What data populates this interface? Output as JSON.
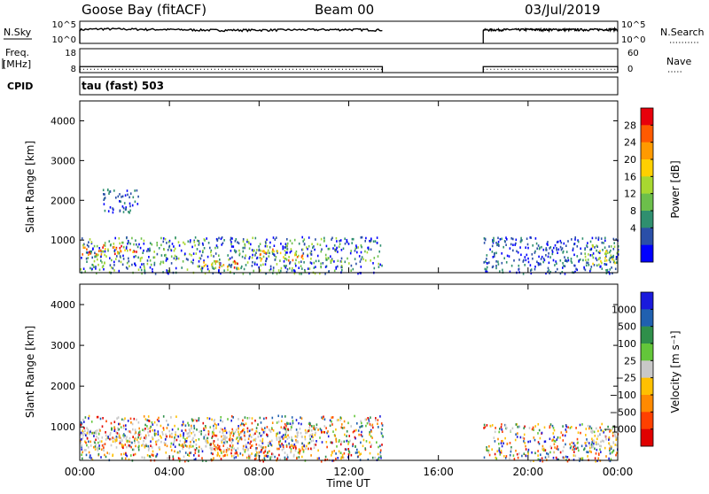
{
  "header": {
    "station": "Goose Bay (fitACF)",
    "beam": "Beam 00",
    "date": "03/Jul/2019"
  },
  "panels": {
    "nsky_label": "N.Sky",
    "nsky_ticks": [
      "10^5",
      "10^0"
    ],
    "nsearch_label": "N.Search",
    "nsearch_ticks": [
      "10^5",
      "10^0"
    ],
    "freq_label_1": "Freq.",
    "freq_label_2": "[MHz]",
    "freq_ticks": [
      "18",
      "8"
    ],
    "nave_label": "Nave",
    "nave_ticks": [
      "60",
      "0"
    ],
    "cpid_label": "CPID",
    "cpid_value": "tau (fast) 503"
  },
  "axes": {
    "ylabel": "Slant Range [km]",
    "xlabel": "Time UT",
    "y_ticks": [
      "4000",
      "3000",
      "2000",
      "1000"
    ],
    "x_ticks": [
      "00:00",
      "04:00",
      "08:00",
      "12:00",
      "16:00",
      "20:00",
      "00:00"
    ]
  },
  "colorbars": {
    "power_label": "Power [dB]",
    "power_ticks": [
      "28",
      "24",
      "20",
      "16",
      "12",
      "8",
      "4"
    ],
    "power_colors": [
      "#e8000b",
      "#ff5a00",
      "#ff9a00",
      "#ffd000",
      "#a8d830",
      "#6cbf4b",
      "#2f8f6f",
      "#2a4fa8",
      "#0000ff"
    ],
    "velocity_label": "Velocity [m s⁻¹]",
    "velocity_ticks": [
      "1000",
      "500",
      "100",
      "25",
      "−25",
      "−100",
      "−500",
      "−1000"
    ],
    "velocity_colors": [
      "#1a1adc",
      "#2060b0",
      "#2f8f4a",
      "#63c63a",
      "#c8c8c8",
      "#ffc000",
      "#ff8a00",
      "#ff4000",
      "#e00000"
    ]
  },
  "chart_data": [
    {
      "type": "line",
      "title": "N.Sky",
      "x_unit": "hours UT",
      "segments": [
        {
          "x": [
            0.0,
            1.0,
            3.0,
            6.0,
            9.0,
            12.0,
            13.5
          ],
          "y": [
            1000,
            1500,
            1200,
            800,
            900,
            1100,
            900
          ]
        },
        {
          "x": [
            18.0,
            20.0,
            22.0,
            24.0
          ],
          "y": [
            900,
            1100,
            1000,
            1200
          ]
        }
      ],
      "ylim": [
        1,
        100000
      ],
      "scale": "log"
    },
    {
      "type": "line",
      "title": "Freq. [MHz]",
      "segments": [
        {
          "x": [
            0.0,
            13.5
          ],
          "y": [
            10.5,
            10.5
          ]
        },
        {
          "x": [
            18.0,
            24.0
          ],
          "y": [
            10.5,
            10.5
          ]
        }
      ],
      "ylim": [
        8,
        18
      ]
    },
    {
      "type": "heatmap",
      "title": "Power [dB]",
      "x": "hours UT",
      "xlim": [
        0,
        24
      ],
      "y": "Slant Range [km]",
      "ylim": [
        180,
        4500
      ],
      "gaps": [
        [
          13.5,
          18.0
        ]
      ],
      "regions": [
        {
          "t0": 0.0,
          "t1": 13.5,
          "r0": 180,
          "r1": 1100,
          "level": "low-medium"
        },
        {
          "t0": 0.0,
          "t1": 2.5,
          "r0": 650,
          "r1": 900,
          "level": "high"
        },
        {
          "t0": 5.5,
          "t1": 7.2,
          "r0": 300,
          "r1": 500,
          "level": "high"
        },
        {
          "t0": 8.0,
          "t1": 10.0,
          "r0": 500,
          "r1": 800,
          "level": "medium-high"
        },
        {
          "t0": 1.0,
          "t1": 2.6,
          "r0": 1700,
          "r1": 2300,
          "level": "low"
        },
        {
          "t0": 18.0,
          "t1": 24.0,
          "r0": 180,
          "r1": 1100,
          "level": "low"
        },
        {
          "t0": 22.5,
          "t1": 24.0,
          "r0": 400,
          "r1": 900,
          "level": "medium"
        }
      ]
    },
    {
      "type": "heatmap",
      "title": "Velocity [m s^-1]",
      "x": "hours UT",
      "xlim": [
        0,
        24
      ],
      "y": "Slant Range [km]",
      "ylim": [
        180,
        4500
      ],
      "gaps": [
        [
          13.5,
          18.0
        ]
      ],
      "regions": [
        {
          "t0": 0.0,
          "t1": 10.5,
          "r0": 450,
          "r1": 1000,
          "level": "ground-scatter"
        },
        {
          "t0": 6.0,
          "t1": 10.0,
          "r0": 300,
          "r1": 600,
          "level": "negative"
        },
        {
          "t0": 0.0,
          "t1": 13.5,
          "r0": 180,
          "r1": 1300,
          "level": "mixed"
        },
        {
          "t0": 18.0,
          "t1": 24.0,
          "r0": 180,
          "r1": 1100,
          "level": "mixed"
        },
        {
          "t0": 22.5,
          "t1": 24.0,
          "r0": 500,
          "r1": 1000,
          "level": "ground-scatter"
        }
      ]
    }
  ]
}
